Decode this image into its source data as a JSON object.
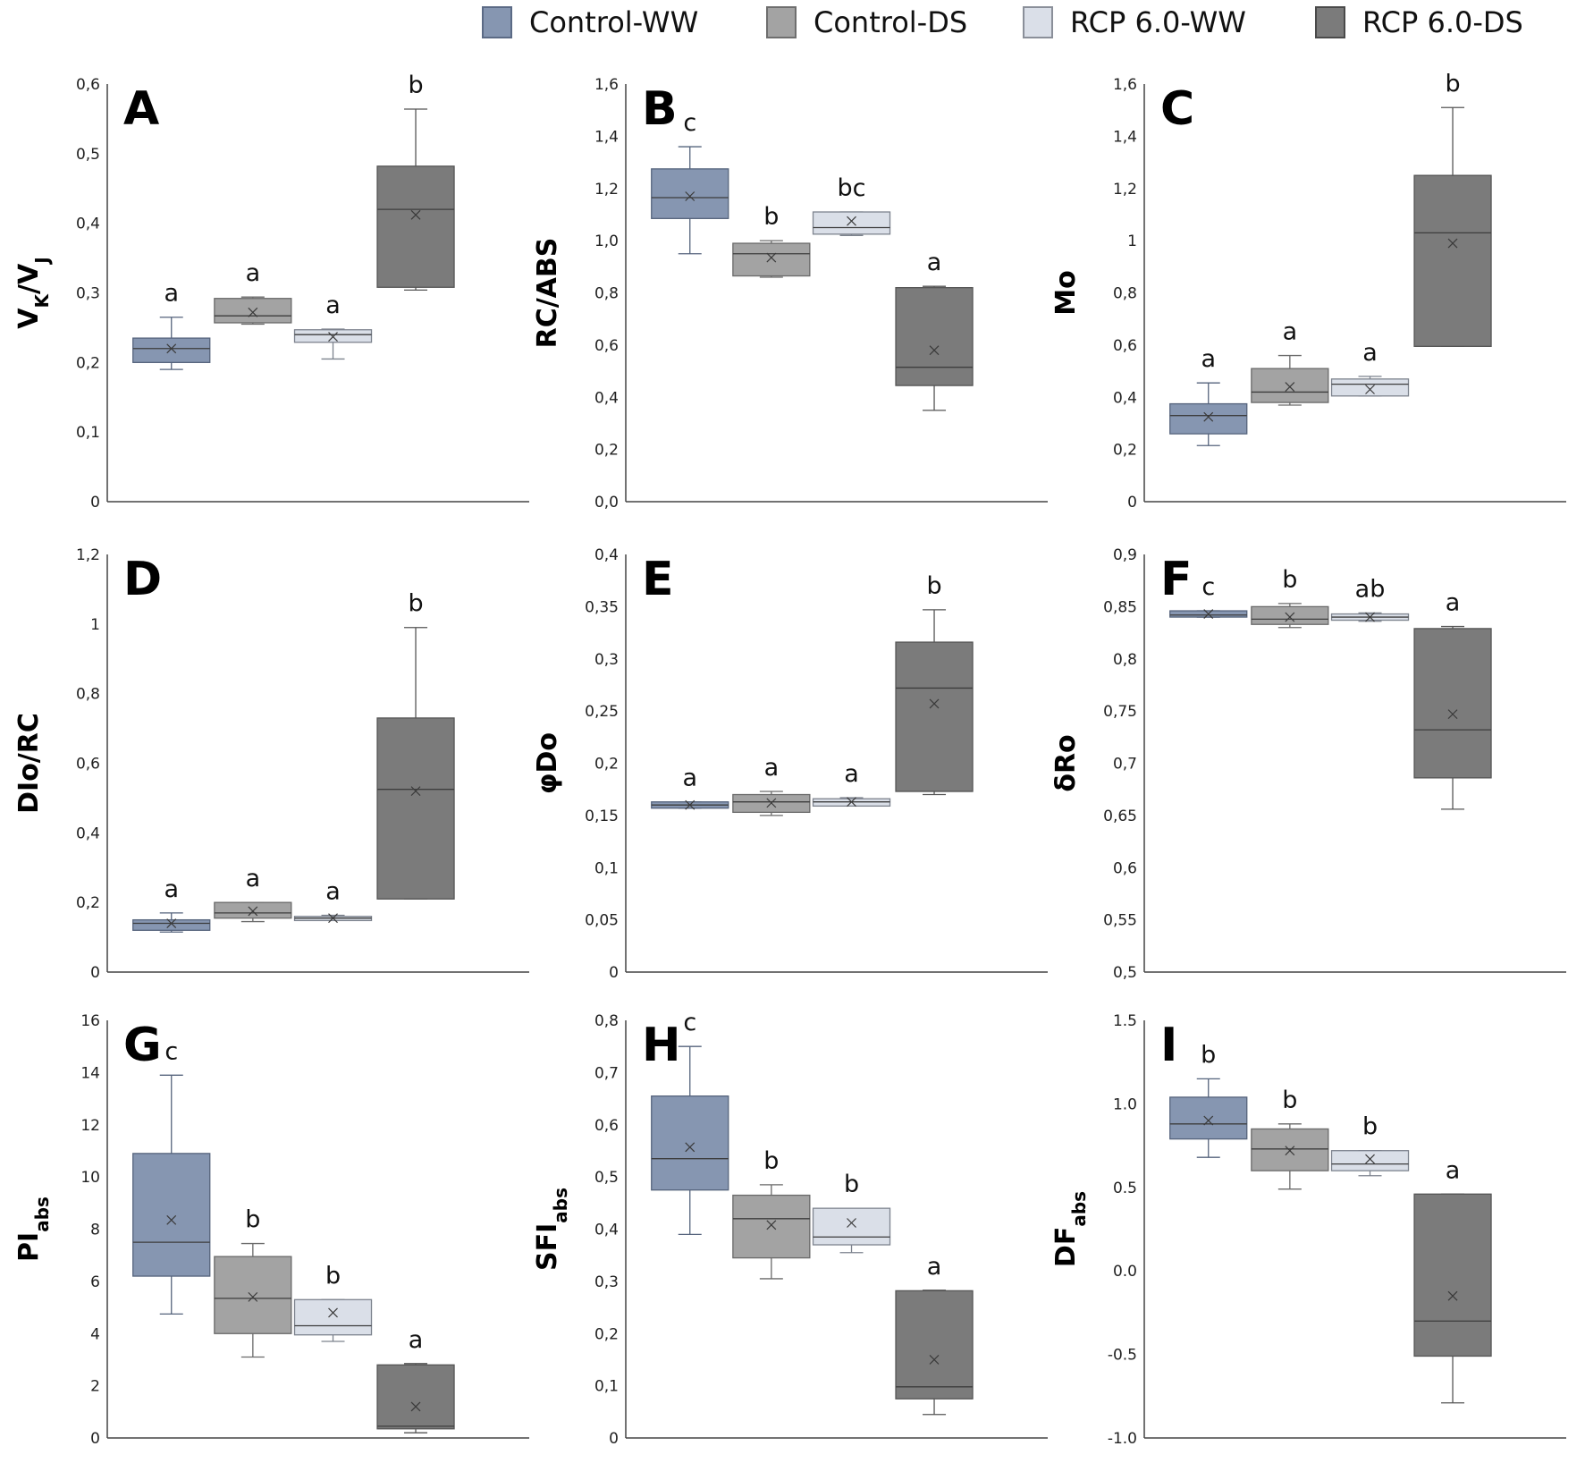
{
  "legend": [
    {
      "label": "Control-WW",
      "color": "#8696b1"
    },
    {
      "label": "Control-DS",
      "color": "#a3a3a3"
    },
    {
      "label": "RCP 6.0-WW",
      "color": "#dadfe8"
    },
    {
      "label": "RCP 6.0-DS",
      "color": "#7b7b7b"
    }
  ],
  "chart_data": [
    {
      "type": "box",
      "panel": "A",
      "ylabel_main": "V",
      "ylabel_parts": [
        [
          "V",
          ""
        ],
        [
          "K",
          "sub"
        ],
        [
          "/V",
          ""
        ],
        [
          "J",
          "sub"
        ]
      ],
      "ylim": [
        0,
        0.6
      ],
      "ticks": [
        "0",
        "0,1",
        "0,2",
        "0,3",
        "0,4",
        "0,5",
        "0,6"
      ],
      "tick_values": [
        0,
        0.1,
        0.2,
        0.3,
        0.4,
        0.5,
        0.6
      ],
      "boxes": [
        {
          "min": 0.19,
          "q1": 0.2,
          "median": 0.22,
          "q3": 0.235,
          "max": 0.265,
          "mean": 0.22,
          "letter": "a"
        },
        {
          "min": 0.255,
          "q1": 0.257,
          "median": 0.267,
          "q3": 0.292,
          "max": 0.294,
          "mean": 0.272,
          "letter": "a"
        },
        {
          "min": 0.205,
          "q1": 0.229,
          "median": 0.24,
          "q3": 0.247,
          "max": 0.248,
          "mean": 0.237,
          "letter": "a"
        },
        {
          "min": 0.304,
          "q1": 0.308,
          "median": 0.42,
          "q3": 0.482,
          "max": 0.564,
          "mean": 0.412,
          "letter": "b"
        }
      ]
    },
    {
      "type": "box",
      "panel": "B",
      "ylabel_parts": [
        [
          "RC/ABS",
          ""
        ]
      ],
      "ylim": [
        0,
        1.6
      ],
      "ticks": [
        "0,0",
        "0,2",
        "0,4",
        "0,6",
        "0,8",
        "1,0",
        "1,2",
        "1,4",
        "1,6"
      ],
      "tick_values": [
        0,
        0.2,
        0.4,
        0.6,
        0.8,
        1.0,
        1.2,
        1.4,
        1.6
      ],
      "boxes": [
        {
          "min": 0.95,
          "q1": 1.085,
          "median": 1.165,
          "q3": 1.275,
          "max": 1.36,
          "mean": 1.17,
          "letter": "c"
        },
        {
          "min": 0.86,
          "q1": 0.865,
          "median": 0.95,
          "q3": 0.99,
          "max": 1.0,
          "mean": 0.935,
          "letter": "b"
        },
        {
          "min": 1.02,
          "q1": 1.025,
          "median": 1.05,
          "q3": 1.11,
          "max": 1.11,
          "mean": 1.075,
          "letter": "bc"
        },
        {
          "min": 0.35,
          "q1": 0.445,
          "median": 0.515,
          "q3": 0.82,
          "max": 0.825,
          "mean": 0.58,
          "letter": "a"
        }
      ]
    },
    {
      "type": "box",
      "panel": "C",
      "ylabel_parts": [
        [
          "Mo",
          ""
        ]
      ],
      "ylim": [
        0,
        1.6
      ],
      "ticks": [
        "0",
        "0,2",
        "0,4",
        "0,6",
        "0,8",
        "1",
        "1,2",
        "1,4",
        "1,6"
      ],
      "tick_values": [
        0,
        0.2,
        0.4,
        0.6,
        0.8,
        1.0,
        1.2,
        1.4,
        1.6
      ],
      "boxes": [
        {
          "min": 0.215,
          "q1": 0.26,
          "median": 0.33,
          "q3": 0.375,
          "max": 0.455,
          "mean": 0.325,
          "letter": "a"
        },
        {
          "min": 0.37,
          "q1": 0.38,
          "median": 0.42,
          "q3": 0.51,
          "max": 0.56,
          "mean": 0.44,
          "letter": "a"
        },
        {
          "min": 0.405,
          "q1": 0.405,
          "median": 0.45,
          "q3": 0.47,
          "max": 0.48,
          "mean": 0.43,
          "letter": "a"
        },
        {
          "min": 0.595,
          "q1": 0.595,
          "median": 1.03,
          "q3": 1.25,
          "max": 1.51,
          "mean": 0.99,
          "letter": "b"
        }
      ]
    },
    {
      "type": "box",
      "panel": "D",
      "ylabel_parts": [
        [
          "DIo/RC",
          ""
        ]
      ],
      "ylim": [
        0,
        1.2
      ],
      "ticks": [
        "0",
        "0,2",
        "0,4",
        "0,6",
        "0,8",
        "1",
        "1,2"
      ],
      "tick_values": [
        0,
        0.2,
        0.4,
        0.6,
        0.8,
        1.0,
        1.2
      ],
      "boxes": [
        {
          "min": 0.115,
          "q1": 0.12,
          "median": 0.14,
          "q3": 0.15,
          "max": 0.17,
          "mean": 0.14,
          "letter": "a"
        },
        {
          "min": 0.145,
          "q1": 0.155,
          "median": 0.17,
          "q3": 0.2,
          "max": 0.2,
          "mean": 0.175,
          "letter": "a"
        },
        {
          "min": 0.148,
          "q1": 0.148,
          "median": 0.155,
          "q3": 0.16,
          "max": 0.163,
          "mean": 0.155,
          "letter": "a"
        },
        {
          "min": 0.21,
          "q1": 0.21,
          "median": 0.525,
          "q3": 0.73,
          "max": 0.99,
          "mean": 0.52,
          "letter": "b"
        }
      ]
    },
    {
      "type": "box",
      "panel": "E",
      "ylabel_parts": [
        [
          "φDo",
          ""
        ]
      ],
      "ylim": [
        0,
        0.4
      ],
      "ticks": [
        "0",
        "0,05",
        "0,1",
        "0,15",
        "0,2",
        "0,25",
        "0,3",
        "0,35",
        "0,4"
      ],
      "tick_values": [
        0,
        0.05,
        0.1,
        0.15,
        0.2,
        0.25,
        0.3,
        0.35,
        0.4
      ],
      "boxes": [
        {
          "min": 0.157,
          "q1": 0.157,
          "median": 0.16,
          "q3": 0.163,
          "max": 0.163,
          "mean": 0.16,
          "letter": "a"
        },
        {
          "min": 0.15,
          "q1": 0.153,
          "median": 0.163,
          "q3": 0.17,
          "max": 0.173,
          "mean": 0.162,
          "letter": "a"
        },
        {
          "min": 0.159,
          "q1": 0.159,
          "median": 0.163,
          "q3": 0.166,
          "max": 0.167,
          "mean": 0.163,
          "letter": "a"
        },
        {
          "min": 0.17,
          "q1": 0.173,
          "median": 0.272,
          "q3": 0.316,
          "max": 0.347,
          "mean": 0.257,
          "letter": "b"
        }
      ]
    },
    {
      "type": "box",
      "panel": "F",
      "ylabel_parts": [
        [
          "δRo",
          ""
        ]
      ],
      "ylim": [
        0.5,
        0.9
      ],
      "ticks": [
        "0,5",
        "0,55",
        "0,6",
        "0,65",
        "0,7",
        "0,75",
        "0,8",
        "0,85",
        "0,9"
      ],
      "tick_values": [
        0.5,
        0.55,
        0.6,
        0.65,
        0.7,
        0.75,
        0.8,
        0.85,
        0.9
      ],
      "boxes": [
        {
          "min": 0.84,
          "q1": 0.84,
          "median": 0.842,
          "q3": 0.846,
          "max": 0.846,
          "mean": 0.843,
          "letter": "c"
        },
        {
          "min": 0.83,
          "q1": 0.833,
          "median": 0.838,
          "q3": 0.85,
          "max": 0.853,
          "mean": 0.84,
          "letter": "b"
        },
        {
          "min": 0.836,
          "q1": 0.837,
          "median": 0.84,
          "q3": 0.843,
          "max": 0.844,
          "mean": 0.84,
          "letter": "ab"
        },
        {
          "min": 0.656,
          "q1": 0.686,
          "median": 0.732,
          "q3": 0.829,
          "max": 0.831,
          "mean": 0.747,
          "letter": "a"
        }
      ]
    },
    {
      "type": "box",
      "panel": "G",
      "ylabel_parts": [
        [
          "PI",
          ""
        ],
        [
          "abs",
          "sub"
        ]
      ],
      "ylim": [
        0,
        16
      ],
      "ticks": [
        "0",
        "2",
        "4",
        "6",
        "8",
        "10",
        "12",
        "14",
        "16"
      ],
      "tick_values": [
        0,
        2,
        4,
        6,
        8,
        10,
        12,
        14,
        16
      ],
      "boxes": [
        {
          "min": 4.75,
          "q1": 6.2,
          "median": 7.5,
          "q3": 10.9,
          "max": 13.9,
          "mean": 8.35,
          "letter": "c"
        },
        {
          "min": 3.1,
          "q1": 4.0,
          "median": 5.35,
          "q3": 6.95,
          "max": 7.45,
          "mean": 5.4,
          "letter": "b"
        },
        {
          "min": 3.7,
          "q1": 3.95,
          "median": 4.3,
          "q3": 5.3,
          "max": 5.3,
          "mean": 4.8,
          "letter": "b"
        },
        {
          "min": 0.2,
          "q1": 0.35,
          "median": 0.45,
          "q3": 2.8,
          "max": 2.85,
          "mean": 1.2,
          "letter": "a"
        }
      ]
    },
    {
      "type": "box",
      "panel": "H",
      "ylabel_parts": [
        [
          "SFI",
          ""
        ],
        [
          "abs",
          "sub"
        ]
      ],
      "ylim": [
        0,
        0.8
      ],
      "ticks": [
        "0",
        "0,1",
        "0,2",
        "0,3",
        "0,4",
        "0,5",
        "0,6",
        "0,7",
        "0,8"
      ],
      "tick_values": [
        0,
        0.1,
        0.2,
        0.3,
        0.4,
        0.5,
        0.6,
        0.7,
        0.8
      ],
      "boxes": [
        {
          "min": 0.39,
          "q1": 0.475,
          "median": 0.535,
          "q3": 0.655,
          "max": 0.75,
          "mean": 0.557,
          "letter": "c"
        },
        {
          "min": 0.305,
          "q1": 0.345,
          "median": 0.42,
          "q3": 0.465,
          "max": 0.485,
          "mean": 0.408,
          "letter": "b"
        },
        {
          "min": 0.355,
          "q1": 0.37,
          "median": 0.385,
          "q3": 0.44,
          "max": 0.44,
          "mean": 0.412,
          "letter": "b"
        },
        {
          "min": 0.045,
          "q1": 0.075,
          "median": 0.098,
          "q3": 0.282,
          "max": 0.283,
          "mean": 0.15,
          "letter": "a"
        }
      ]
    },
    {
      "type": "box",
      "panel": "I",
      "ylabel_parts": [
        [
          "DF",
          ""
        ],
        [
          "abs",
          "sub"
        ]
      ],
      "ylim": [
        -1.0,
        1.5
      ],
      "ticks": [
        "-1.0",
        "-0.5",
        "0.0",
        "0.5",
        "1.0",
        "1.5"
      ],
      "tick_values": [
        -1.0,
        -0.5,
        0.0,
        0.5,
        1.0,
        1.5
      ],
      "boxes": [
        {
          "min": 0.68,
          "q1": 0.79,
          "median": 0.88,
          "q3": 1.04,
          "max": 1.15,
          "mean": 0.9,
          "letter": "b"
        },
        {
          "min": 0.49,
          "q1": 0.6,
          "median": 0.73,
          "q3": 0.85,
          "max": 0.88,
          "mean": 0.72,
          "letter": "b"
        },
        {
          "min": 0.57,
          "q1": 0.6,
          "median": 0.64,
          "q3": 0.72,
          "max": 0.72,
          "mean": 0.67,
          "letter": "b"
        },
        {
          "min": -0.79,
          "q1": -0.51,
          "median": -0.3,
          "q3": 0.46,
          "max": 0.46,
          "mean": -0.15,
          "letter": "a"
        }
      ]
    }
  ]
}
